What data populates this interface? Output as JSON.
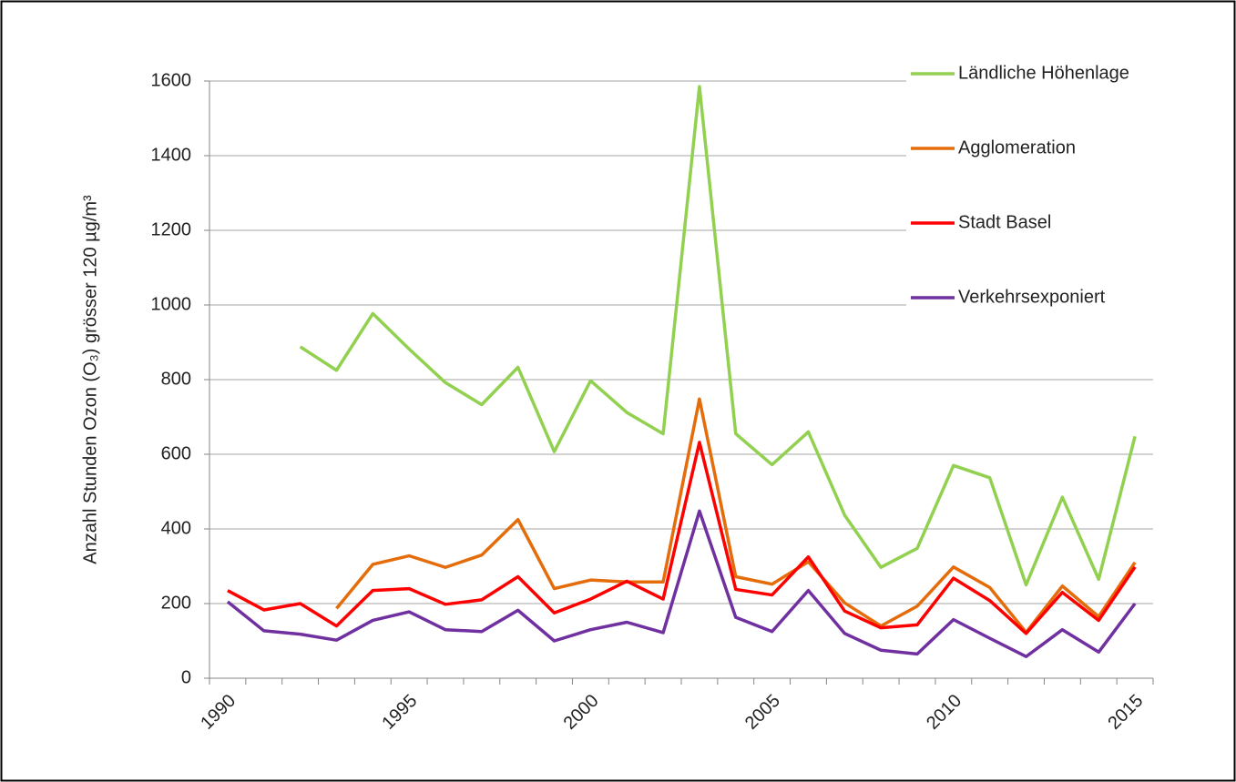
{
  "chart_data": {
    "type": "line",
    "y_label": "Anzahl Stunden Ozon (O₃) grösser 120 µg/m³",
    "x": [
      1990,
      1991,
      1992,
      1993,
      1994,
      1995,
      1996,
      1997,
      1998,
      1999,
      2000,
      2001,
      2002,
      2003,
      2004,
      2005,
      2006,
      2007,
      2008,
      2009,
      2010,
      2011,
      2012,
      2013,
      2014,
      2015
    ],
    "xlim": [
      1989.5,
      2015.5
    ],
    "xticks": [
      1990,
      1995,
      2000,
      2005,
      2010,
      2015
    ],
    "ylim": [
      0,
      1600
    ],
    "yticks": [
      0,
      200,
      400,
      600,
      800,
      1000,
      1200,
      1400,
      1600
    ],
    "grid": true,
    "legend": "right",
    "series": [
      {
        "name": "Ländliche Höhenlage",
        "color": "#92d050",
        "values": [
          null,
          null,
          888,
          825,
          977,
          882,
          792,
          733,
          833,
          607,
          797,
          712,
          655,
          1585,
          655,
          572,
          660,
          437,
          297,
          348,
          570,
          537,
          250,
          485,
          265,
          648
        ]
      },
      {
        "name": "Agglomeration",
        "color": "#e46c0a",
        "values": [
          null,
          null,
          null,
          187,
          305,
          328,
          297,
          330,
          425,
          240,
          263,
          258,
          258,
          748,
          272,
          252,
          312,
          202,
          140,
          193,
          298,
          243,
          123,
          247,
          165,
          310
        ]
      },
      {
        "name": "Stadt Basel",
        "color": "#ff0000",
        "values": [
          235,
          183,
          200,
          140,
          235,
          240,
          198,
          210,
          272,
          175,
          212,
          260,
          212,
          632,
          238,
          223,
          325,
          180,
          135,
          143,
          268,
          208,
          120,
          230,
          155,
          298
        ]
      },
      {
        "name": "Verkehrsexponiert",
        "color": "#7030a0",
        "values": [
          205,
          127,
          118,
          102,
          155,
          178,
          130,
          125,
          182,
          100,
          130,
          150,
          122,
          448,
          163,
          125,
          235,
          120,
          75,
          65,
          157,
          107,
          58,
          130,
          70,
          200
        ]
      }
    ]
  }
}
